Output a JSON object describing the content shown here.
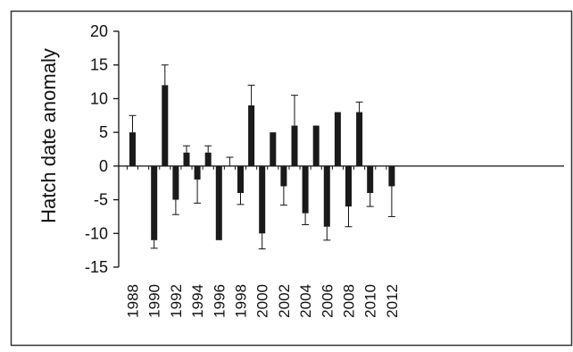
{
  "chart_data": {
    "type": "bar",
    "ylabel": "Hatch date anomaly",
    "xlabel": "",
    "title": "",
    "ylim": [
      -15,
      20
    ],
    "yticks": [
      20,
      15,
      10,
      5,
      0,
      -5,
      -10,
      -15
    ],
    "xticks": [
      "1988",
      "1990",
      "1992",
      "1994",
      "1996",
      "1998",
      "2000",
      "2002",
      "2004",
      "2006",
      "2008",
      "2010",
      "2012"
    ],
    "grid": false,
    "bar_color": "#1a1a1a",
    "series": [
      {
        "x": [
          1988,
          1990,
          1991,
          1992,
          1993,
          1994,
          1995,
          1996,
          1997,
          1998,
          1999,
          2000,
          2001,
          2002,
          2003,
          2004,
          2005,
          2006,
          2007,
          2008,
          2009,
          2010,
          2012
        ],
        "values": [
          5,
          -11,
          12,
          -5,
          2,
          -2,
          2,
          -11,
          0,
          -4,
          9,
          -10,
          5,
          -3,
          6,
          -7,
          6,
          -9,
          8,
          -6,
          8,
          -4,
          -3
        ],
        "error": [
          2.5,
          1.2,
          3,
          2.2,
          1,
          3.5,
          1,
          0,
          1.3,
          1.7,
          3,
          2.3,
          0,
          2.8,
          4.5,
          1.7,
          0,
          2,
          0,
          3,
          1.5,
          2,
          4.5
        ]
      }
    ]
  }
}
